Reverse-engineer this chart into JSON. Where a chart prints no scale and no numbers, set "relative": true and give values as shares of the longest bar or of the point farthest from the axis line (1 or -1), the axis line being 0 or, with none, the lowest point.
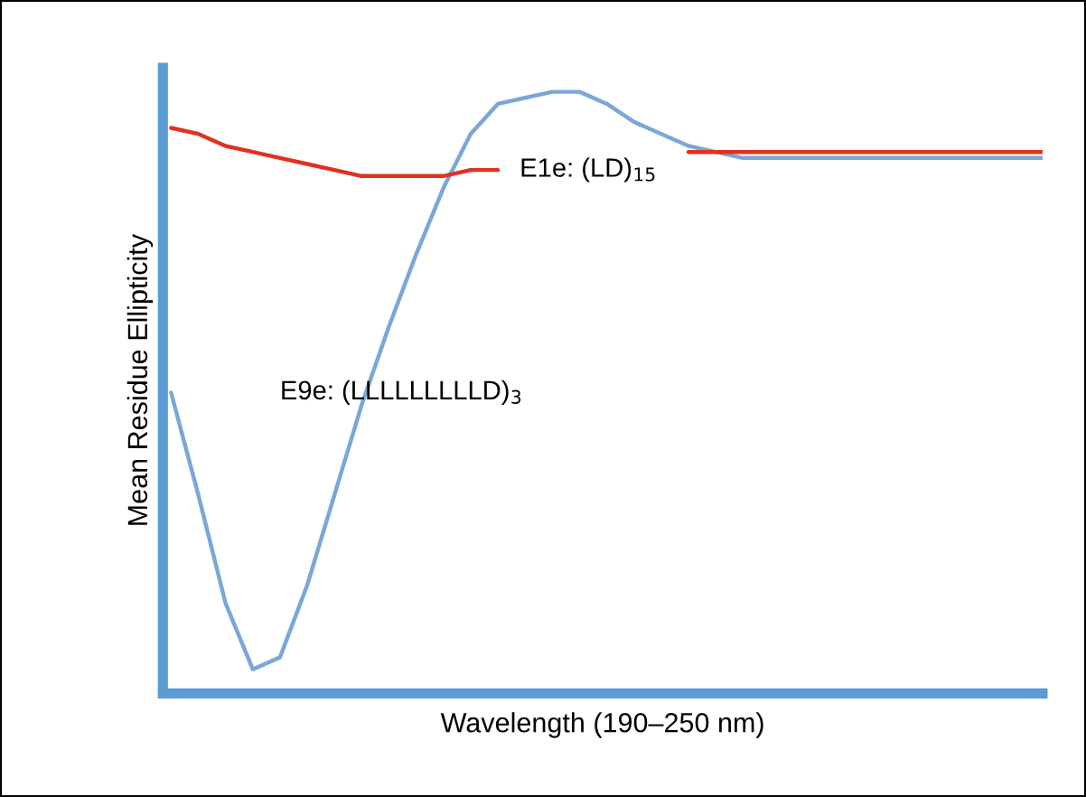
{
  "chart_data": {
    "type": "line",
    "relative": true,
    "xlabel": "Wavelength (190–250 nm)",
    "ylabel": "Mean Residue Ellipticity",
    "categories": [
      null,
      null,
      null,
      null,
      null,
      null,
      null,
      null,
      null,
      null,
      null,
      null,
      null,
      null,
      null,
      null,
      null,
      null,
      null,
      null,
      null,
      null,
      null,
      null,
      null,
      null,
      null,
      null,
      null,
      null,
      null,
      null,
      null
    ],
    "series": [
      {
        "name": "E9e: (LLLLLLLLLD)$_{3}$",
        "color": "#7ba7d7",
        "values": [
          0.5,
          0.33,
          0.15,
          0.04,
          0.06,
          0.18,
          0.33,
          0.48,
          0.61,
          0.73,
          0.84,
          0.93,
          0.98,
          0.99,
          1.0,
          1.0,
          0.98,
          0.95,
          0.93,
          0.91,
          0.9,
          0.89,
          0.89,
          0.89,
          0.89,
          0.89,
          0.89,
          0.89,
          0.89,
          0.89,
          0.89,
          0.89,
          0.89
        ]
      },
      {
        "name": "E1e: (LD)$_{15}$",
        "color": "#e0321f",
        "values": [
          0.94,
          0.93,
          0.91,
          0.9,
          0.89,
          0.88,
          0.87,
          0.86,
          0.86,
          0.86,
          0.86,
          0.87,
          0.87,
          null,
          null,
          null,
          null,
          null,
          null,
          0.9,
          0.9,
          0.9,
          0.9,
          0.9,
          0.9,
          0.9,
          0.9,
          0.9,
          0.9,
          0.9,
          0.9,
          0.9,
          0.9
        ]
      }
    ],
    "grid": false,
    "legend": false
  }
}
